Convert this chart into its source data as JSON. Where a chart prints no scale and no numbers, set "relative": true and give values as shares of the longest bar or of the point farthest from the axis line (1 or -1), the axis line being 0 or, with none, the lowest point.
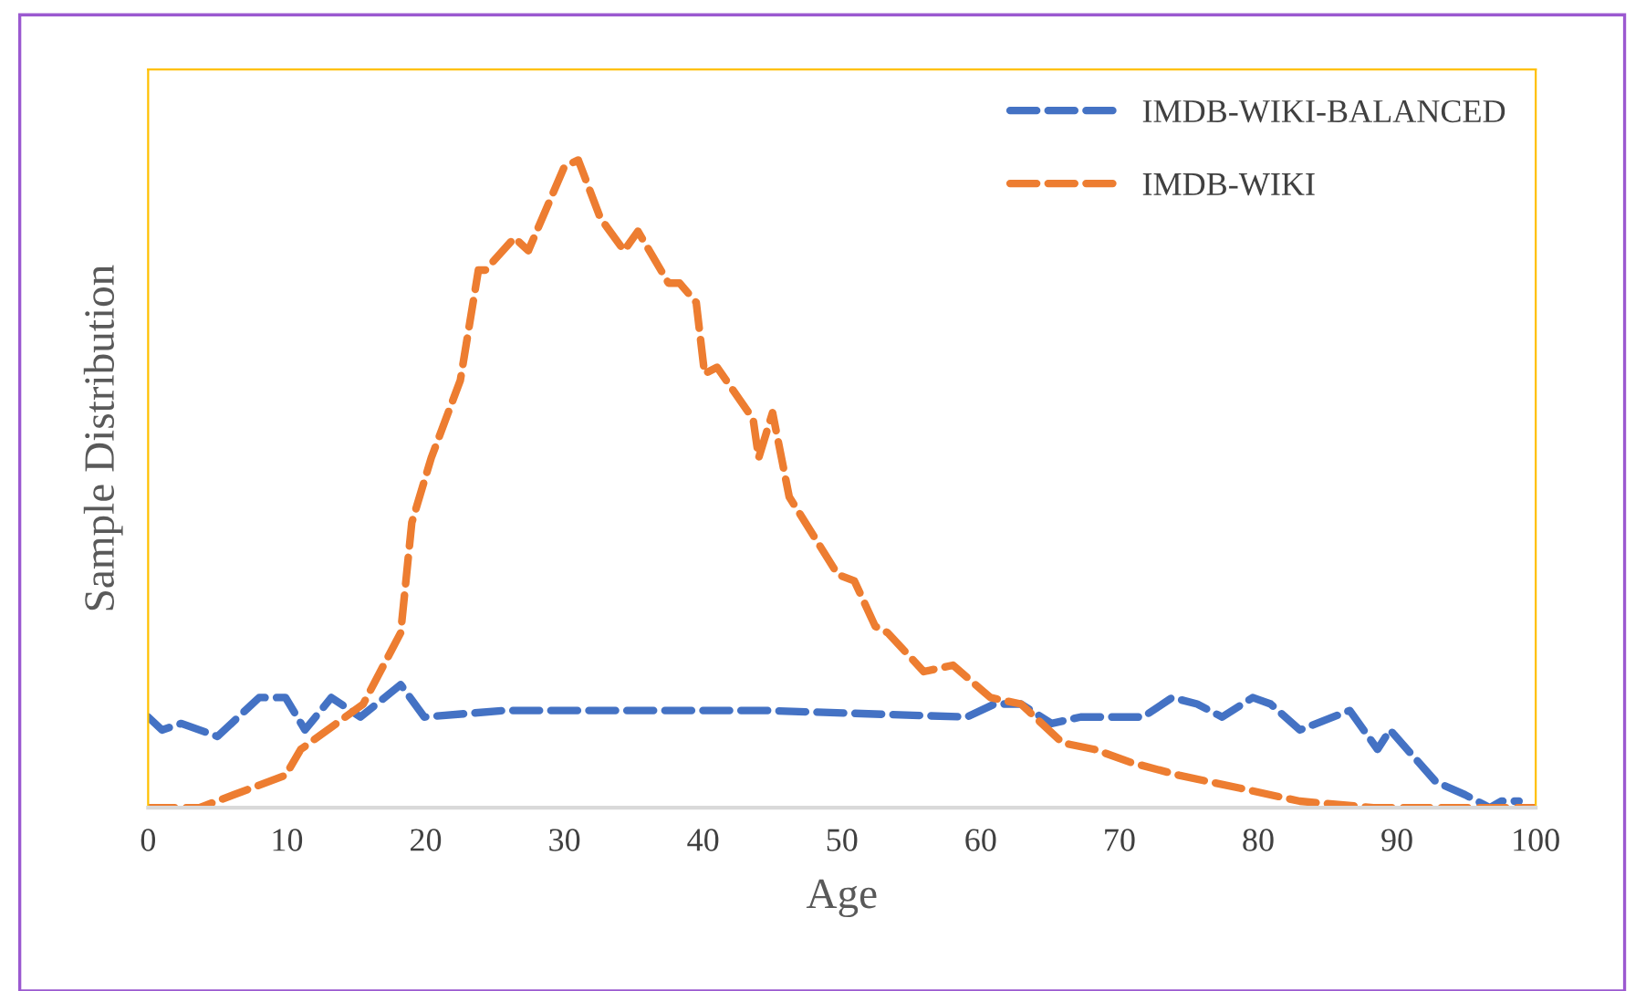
{
  "chart_data": {
    "type": "line",
    "relative": true,
    "xlabel": "Age",
    "ylabel": "Sample Distribution",
    "xlim": [
      0,
      100
    ],
    "xticks": [
      0,
      10,
      20,
      30,
      40,
      50,
      60,
      70,
      80,
      90,
      100
    ],
    "legend": "top right",
    "line_style": "dashed",
    "grid": false,
    "series": [
      {
        "name": "IMDB-WIKI-BALANCED",
        "color": "#4472c4",
        "x": [
          0,
          1,
          2.4,
          5,
          8,
          9.9,
          11.3,
          13.2,
          15.3,
          18.2,
          19.9,
          25.7,
          44.5,
          59,
          61,
          62.9,
          65.1,
          67.2,
          71.7,
          73.8,
          75.6,
          77.4,
          79.6,
          80.9,
          83,
          86.6,
          88.6,
          89.5,
          92.8,
          94.9,
          96.7,
          97.5,
          98.8
        ],
        "values": [
          0.14,
          0.12,
          0.13,
          0.11,
          0.17,
          0.17,
          0.12,
          0.17,
          0.14,
          0.19,
          0.14,
          0.15,
          0.15,
          0.14,
          0.16,
          0.16,
          0.13,
          0.14,
          0.14,
          0.17,
          0.16,
          0.14,
          0.17,
          0.16,
          0.12,
          0.15,
          0.09,
          0.12,
          0.04,
          0.02,
          0,
          0.01,
          0.01
        ]
      },
      {
        "name": "IMDB-WIKI",
        "color": "#ed7d31",
        "x": [
          0,
          3.7,
          9.9,
          11,
          15.5,
          18.2,
          19,
          20.4,
          22.5,
          23.8,
          24.3,
          26.4,
          27.4,
          30,
          31,
          32.6,
          34.3,
          35.3,
          37.5,
          38.3,
          39.5,
          40.1,
          41,
          43.6,
          44,
          45,
          46.2,
          49.7,
          50.9,
          52.4,
          53.3,
          55.9,
          58,
          60.7,
          62.9,
          65.9,
          68.2,
          70.8,
          74.3,
          78.7,
          83,
          88.3,
          100
        ],
        "values": [
          0,
          0,
          0.05,
          0.09,
          0.16,
          0.27,
          0.44,
          0.54,
          0.66,
          0.83,
          0.83,
          0.88,
          0.86,
          0.99,
          1,
          0.91,
          0.86,
          0.89,
          0.81,
          0.81,
          0.78,
          0.67,
          0.68,
          0.6,
          0.54,
          0.61,
          0.48,
          0.36,
          0.35,
          0.28,
          0.27,
          0.21,
          0.22,
          0.17,
          0.16,
          0.1,
          0.09,
          0.07,
          0.05,
          0.03,
          0.01,
          0,
          0
        ]
      }
    ]
  }
}
